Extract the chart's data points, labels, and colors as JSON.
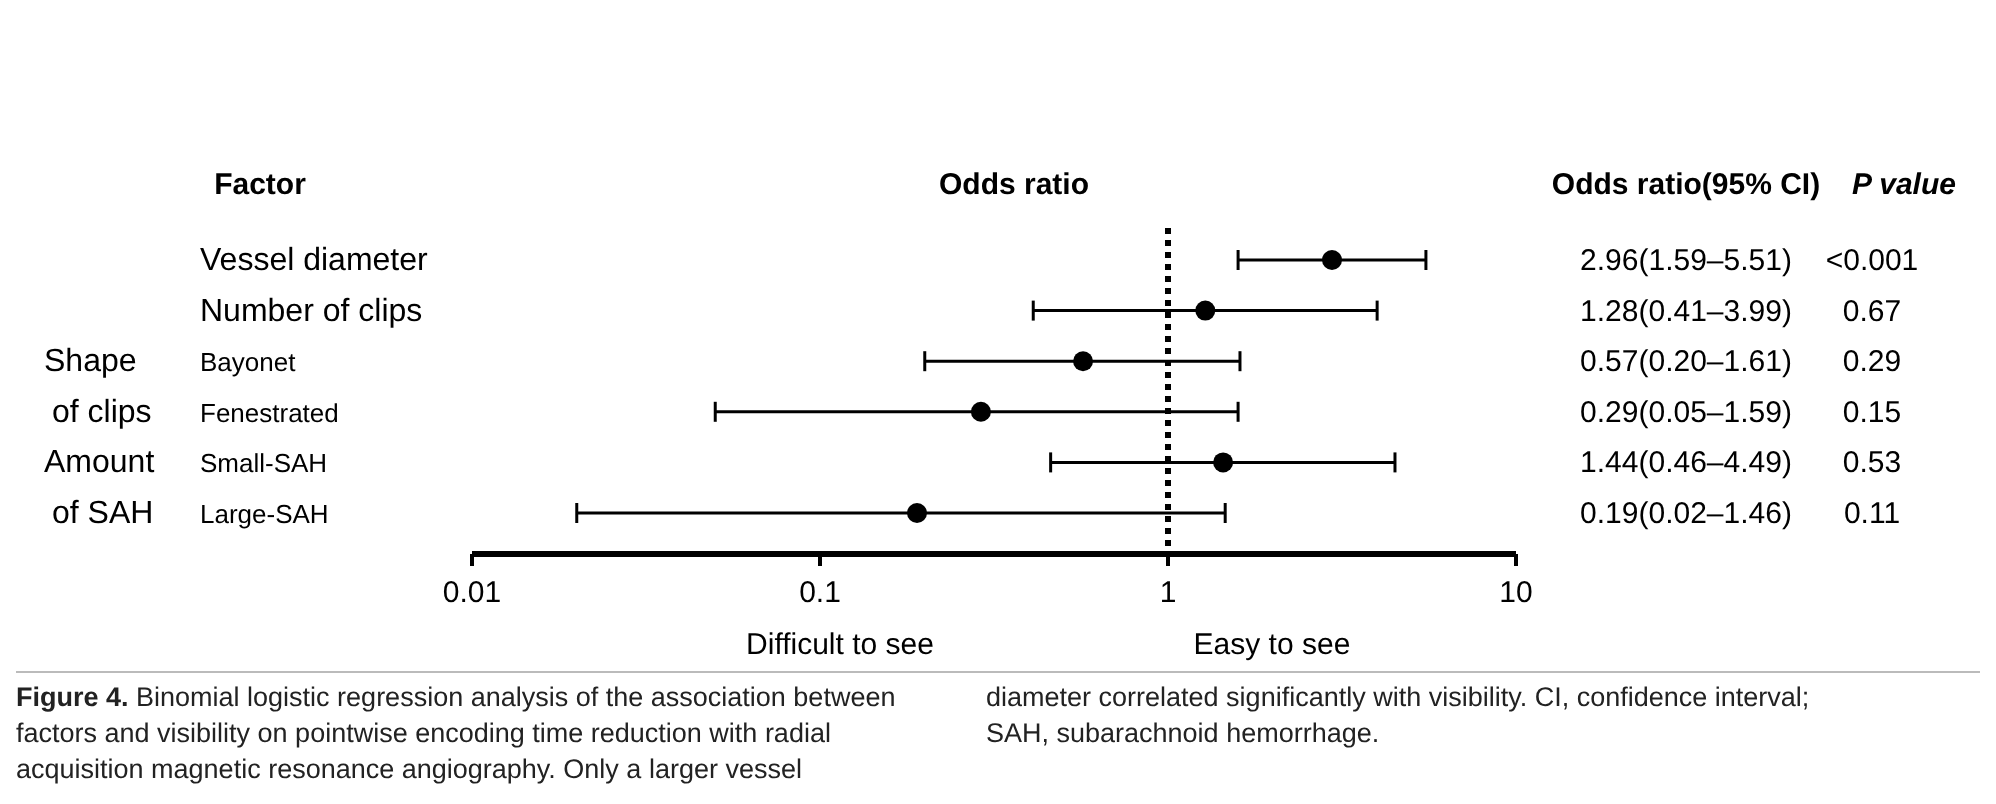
{
  "chart_data": {
    "type": "scatter",
    "orientation": "horizontal",
    "title": "Odds ratio",
    "categories": [
      "Vessel diameter",
      "Number of clips",
      "Bayonet",
      "Fenestrated",
      "Small-SAH",
      "Large-SAH"
    ],
    "values": [
      2.96,
      1.28,
      0.57,
      0.29,
      1.44,
      0.19
    ],
    "errors": [
      [
        1.59,
        5.51
      ],
      [
        0.41,
        3.99
      ],
      [
        0.2,
        1.61
      ],
      [
        0.05,
        1.59
      ],
      [
        0.46,
        4.49
      ],
      [
        0.02,
        1.46
      ]
    ],
    "value_labels": [
      "2.96(1.59–5.51)",
      "1.28(0.41–3.99)",
      "0.57(0.20–1.61)",
      "0.29(0.05–1.59)",
      "1.44(0.46–4.49)",
      "0.19(0.02–1.46)"
    ],
    "color": "#000000",
    "marker": "circle",
    "log": "x",
    "xlim": [
      0.01,
      10
    ],
    "xticks": [
      0.01,
      0.1,
      1,
      10
    ],
    "grid": false,
    "legend": false,
    "ref_lines": [
      {
        "axis": "x",
        "value": 1,
        "line_style": "dotted",
        "color": "#000000"
      }
    ],
    "annotations": [
      "Factor",
      "Odds ratio(95% CI)",
      "P value",
      "<0.001",
      "0.67",
      "0.29",
      "0.15",
      "0.53",
      "0.11",
      "Shape",
      "of clips",
      "Amount",
      "of SAH",
      "Difficult to see",
      "Easy to see",
      "Figure 4. Binomial logistic regression analysis of the association between factors and visibility on pointwise encoding time reduction with radial acquisition magnetic resonance angiography. Only a larger vessel diameter correlated significantly with visibility. CI, confidence interval; SAH, subarachnoid hemorrhage."
    ]
  }
}
